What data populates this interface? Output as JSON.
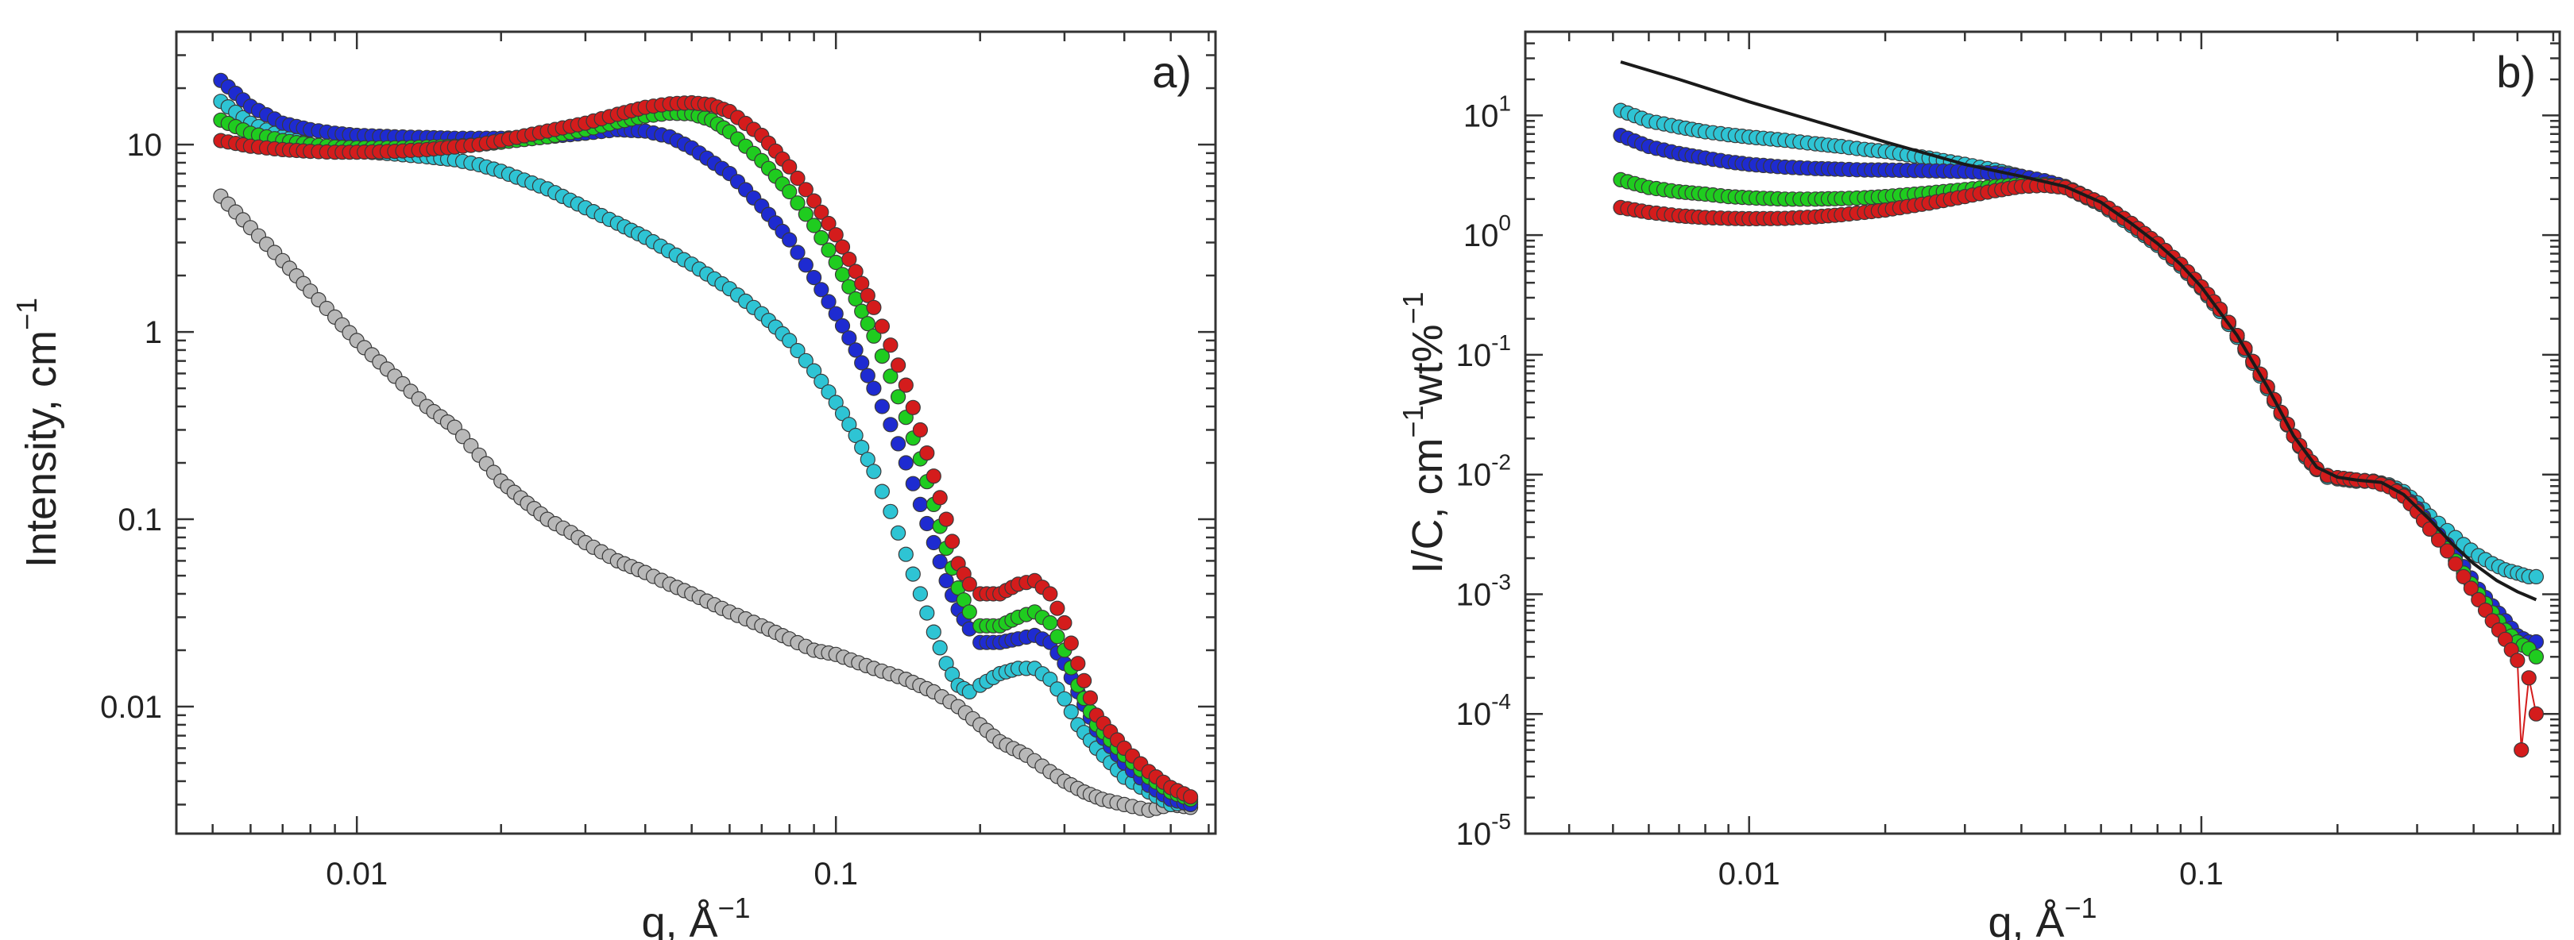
{
  "chart_data": [
    {
      "type": "scatter",
      "panel_label": "a)",
      "xscale": "log",
      "yscale": "log",
      "xlim": [
        0.0042,
        0.62
      ],
      "ylim": [
        0.0021,
        40
      ],
      "xlabel": {
        "text": "q, Å",
        "sup": "−1"
      },
      "ylabel": {
        "text": "Intensity, cm",
        "sup": "−1"
      },
      "xticks": [
        {
          "value": 0.01,
          "label": "0.01"
        },
        {
          "value": 0.1,
          "label": "0.1"
        }
      ],
      "yticks": [
        {
          "value": 10,
          "label": "10"
        },
        {
          "value": 1,
          "label": "1"
        },
        {
          "value": 0.1,
          "label": "0.1"
        },
        {
          "value": 0.01,
          "label": "0.01"
        }
      ],
      "series": [
        {
          "name": "grey",
          "color": "#b8b8b8",
          "line": true,
          "x": [
            0.0052,
            0.006,
            0.007,
            0.008,
            0.009,
            0.01,
            0.012,
            0.014,
            0.016,
            0.018,
            0.02,
            0.022,
            0.025,
            0.028,
            0.03,
            0.035,
            0.04,
            0.045,
            0.05,
            0.06,
            0.07,
            0.08,
            0.09,
            0.1,
            0.12,
            0.14,
            0.16,
            0.18,
            0.2,
            0.22,
            0.25,
            0.28,
            0.3,
            0.33,
            0.36,
            0.4,
            0.45,
            0.5,
            0.55
          ],
          "y": [
            5.3,
            3.6,
            2.4,
            1.65,
            1.2,
            0.9,
            0.58,
            0.4,
            0.31,
            0.22,
            0.16,
            0.13,
            0.1,
            0.085,
            0.075,
            0.06,
            0.052,
            0.045,
            0.04,
            0.032,
            0.027,
            0.023,
            0.02,
            0.019,
            0.016,
            0.014,
            0.012,
            0.01,
            0.008,
            0.0065,
            0.0055,
            0.0045,
            0.004,
            0.0035,
            0.0032,
            0.003,
            0.0028,
            0.003,
            0.0029
          ]
        },
        {
          "name": "cyan",
          "color": "#2ec4d4",
          "line": false,
          "x": [
            0.0052,
            0.006,
            0.007,
            0.008,
            0.009,
            0.01,
            0.012,
            0.014,
            0.016,
            0.018,
            0.02,
            0.025,
            0.03,
            0.035,
            0.04,
            0.05,
            0.06,
            0.07,
            0.08,
            0.09,
            0.1,
            0.11,
            0.12,
            0.13,
            0.14,
            0.15,
            0.16,
            0.17,
            0.18,
            0.19,
            0.2,
            0.22,
            0.24,
            0.26,
            0.28,
            0.3,
            0.32,
            0.35,
            0.4,
            0.45,
            0.5,
            0.55
          ],
          "y": [
            17,
            13,
            11,
            10,
            9.5,
            9.2,
            8.9,
            8.6,
            8.3,
            7.8,
            7.2,
            5.8,
            4.6,
            3.8,
            3.2,
            2.3,
            1.7,
            1.25,
            0.9,
            0.62,
            0.42,
            0.28,
            0.18,
            0.11,
            0.065,
            0.04,
            0.025,
            0.017,
            0.013,
            0.012,
            0.013,
            0.015,
            0.016,
            0.016,
            0.014,
            0.011,
            0.008,
            0.006,
            0.0042,
            0.0035,
            0.003,
            0.0031
          ]
        },
        {
          "name": "blue",
          "color": "#1e2bd1",
          "line": false,
          "x": [
            0.0052,
            0.006,
            0.007,
            0.008,
            0.009,
            0.01,
            0.012,
            0.014,
            0.016,
            0.018,
            0.02,
            0.025,
            0.03,
            0.035,
            0.04,
            0.045,
            0.05,
            0.06,
            0.07,
            0.08,
            0.09,
            0.1,
            0.11,
            0.12,
            0.13,
            0.14,
            0.15,
            0.16,
            0.17,
            0.18,
            0.19,
            0.2,
            0.22,
            0.24,
            0.26,
            0.28,
            0.3,
            0.32,
            0.35,
            0.4,
            0.45,
            0.5,
            0.55
          ],
          "y": [
            22,
            16,
            13,
            12,
            11.5,
            11.2,
            11,
            10.9,
            10.8,
            10.8,
            10.8,
            11,
            11.5,
            12,
            11.8,
            11,
            9.6,
            7,
            4.7,
            3.1,
            1.95,
            1.25,
            0.8,
            0.5,
            0.32,
            0.2,
            0.12,
            0.075,
            0.047,
            0.033,
            0.026,
            0.022,
            0.022,
            0.023,
            0.024,
            0.022,
            0.017,
            0.012,
            0.0075,
            0.005,
            0.0038,
            0.0032,
            0.003
          ]
        },
        {
          "name": "green",
          "color": "#1fcc1f",
          "line": false,
          "x": [
            0.0052,
            0.006,
            0.007,
            0.008,
            0.009,
            0.01,
            0.012,
            0.014,
            0.016,
            0.018,
            0.02,
            0.025,
            0.03,
            0.035,
            0.04,
            0.045,
            0.05,
            0.055,
            0.06,
            0.07,
            0.08,
            0.09,
            0.1,
            0.11,
            0.12,
            0.13,
            0.14,
            0.15,
            0.16,
            0.17,
            0.18,
            0.19,
            0.2,
            0.22,
            0.24,
            0.26,
            0.28,
            0.3,
            0.32,
            0.35,
            0.4,
            0.45,
            0.5,
            0.55
          ],
          "y": [
            13.5,
            11.5,
            10.5,
            10,
            9.7,
            9.6,
            9.6,
            9.7,
            9.8,
            10,
            10.3,
            11,
            12,
            13.2,
            14.2,
            14.7,
            14.6,
            13.5,
            11.7,
            8.2,
            5.6,
            3.7,
            2.35,
            1.5,
            0.95,
            0.58,
            0.35,
            0.21,
            0.12,
            0.07,
            0.043,
            0.032,
            0.027,
            0.027,
            0.03,
            0.032,
            0.028,
            0.02,
            0.013,
            0.008,
            0.0055,
            0.0042,
            0.0035,
            0.0032
          ]
        },
        {
          "name": "red",
          "color": "#d41c1c",
          "line": false,
          "x": [
            0.0052,
            0.006,
            0.007,
            0.008,
            0.009,
            0.01,
            0.012,
            0.014,
            0.016,
            0.018,
            0.02,
            0.025,
            0.03,
            0.035,
            0.04,
            0.045,
            0.05,
            0.055,
            0.06,
            0.07,
            0.08,
            0.09,
            0.1,
            0.11,
            0.12,
            0.13,
            0.14,
            0.15,
            0.16,
            0.17,
            0.18,
            0.19,
            0.2,
            0.22,
            0.24,
            0.26,
            0.28,
            0.3,
            0.32,
            0.35,
            0.4,
            0.45,
            0.5,
            0.55
          ],
          "y": [
            10.5,
            9.8,
            9.4,
            9.2,
            9.1,
            9.1,
            9.2,
            9.4,
            9.7,
            10,
            10.5,
            11.8,
            13,
            14.5,
            15.8,
            16.5,
            16.7,
            16.3,
            15,
            11.2,
            7.6,
            5,
            3.3,
            2.1,
            1.35,
            0.85,
            0.52,
            0.3,
            0.17,
            0.1,
            0.058,
            0.045,
            0.04,
            0.04,
            0.045,
            0.047,
            0.04,
            0.028,
            0.017,
            0.009,
            0.006,
            0.0045,
            0.0037,
            0.0033
          ]
        }
      ]
    },
    {
      "type": "scatter",
      "panel_label": "b)",
      "xscale": "log",
      "yscale": "log",
      "xlim": [
        0.0032,
        0.62
      ],
      "ylim": [
        1e-05,
        50
      ],
      "xlabel": {
        "text": "q, Å",
        "sup": "−1"
      },
      "ylabel": {
        "parts": [
          "I/C, cm",
          "−1",
          "wt%",
          "−1"
        ]
      },
      "xticks": [
        {
          "value": 0.01,
          "label": "0.01"
        },
        {
          "value": 0.1,
          "label": "0.1"
        }
      ],
      "yticks": [
        {
          "value": 10,
          "base": "10",
          "exp": "1"
        },
        {
          "value": 1,
          "base": "10",
          "exp": "0"
        },
        {
          "value": 0.1,
          "base": "10",
          "exp": "-1"
        },
        {
          "value": 0.01,
          "base": "10",
          "exp": "-2"
        },
        {
          "value": 0.001,
          "base": "10",
          "exp": "-3"
        },
        {
          "value": 0.0001,
          "base": "10",
          "exp": "-4"
        },
        {
          "value": 1e-05,
          "base": "10",
          "exp": "-5"
        }
      ],
      "series": [
        {
          "name": "cyan",
          "color": "#2ec4d4",
          "line": false,
          "x": [
            0.0052,
            0.006,
            0.007,
            0.008,
            0.009,
            0.01,
            0.012,
            0.014,
            0.016,
            0.018,
            0.02,
            0.025,
            0.03,
            0.035,
            0.04,
            0.045,
            0.05,
            0.06,
            0.07,
            0.08,
            0.09,
            0.1,
            0.11,
            0.12,
            0.13,
            0.14,
            0.15,
            0.16,
            0.17,
            0.18,
            0.19,
            0.2,
            0.22,
            0.24,
            0.26,
            0.28,
            0.3,
            0.32,
            0.35,
            0.38,
            0.41,
            0.44,
            0.47,
            0.5,
            0.53,
            0.55
          ],
          "y": [
            11,
            9,
            8,
            7.3,
            6.9,
            6.6,
            6.2,
            5.8,
            5.5,
            5.2,
            5,
            4.4,
            3.9,
            3.5,
            3.1,
            2.8,
            2.5,
            1.8,
            1.2,
            0.82,
            0.55,
            0.36,
            0.23,
            0.14,
            0.085,
            0.052,
            0.032,
            0.021,
            0.014,
            0.011,
            0.0095,
            0.0092,
            0.0088,
            0.0088,
            0.0082,
            0.0072,
            0.0058,
            0.0045,
            0.0034,
            0.0026,
            0.0021,
            0.0018,
            0.0016,
            0.0015,
            0.0014,
            0.0014
          ]
        },
        {
          "name": "blue",
          "color": "#1e2bd1",
          "line": false,
          "x": [
            0.0052,
            0.006,
            0.007,
            0.008,
            0.009,
            0.01,
            0.012,
            0.014,
            0.016,
            0.018,
            0.02,
            0.025,
            0.03,
            0.035,
            0.04,
            0.045,
            0.05,
            0.06,
            0.07,
            0.08,
            0.09,
            0.1,
            0.11,
            0.12,
            0.13,
            0.14,
            0.15,
            0.16,
            0.17,
            0.18,
            0.19,
            0.2,
            0.22,
            0.24,
            0.26,
            0.28,
            0.3,
            0.32,
            0.35,
            0.38,
            0.41,
            0.44,
            0.47,
            0.5,
            0.53,
            0.55
          ],
          "y": [
            6.8,
            5.5,
            4.8,
            4.4,
            4.1,
            3.9,
            3.7,
            3.6,
            3.55,
            3.5,
            3.5,
            3.45,
            3.4,
            3.3,
            3.1,
            2.85,
            2.55,
            1.85,
            1.25,
            0.85,
            0.57,
            0.37,
            0.24,
            0.145,
            0.088,
            0.054,
            0.033,
            0.021,
            0.0145,
            0.0112,
            0.0098,
            0.0094,
            0.009,
            0.0088,
            0.008,
            0.0068,
            0.0052,
            0.0038,
            0.0026,
            0.0017,
            0.0011,
            0.0008,
            0.0006,
            0.00045,
            0.0004,
            0.0004
          ]
        },
        {
          "name": "green",
          "color": "#1fcc1f",
          "line": false,
          "x": [
            0.0052,
            0.006,
            0.007,
            0.008,
            0.009,
            0.01,
            0.012,
            0.014,
            0.016,
            0.018,
            0.02,
            0.025,
            0.03,
            0.035,
            0.04,
            0.045,
            0.05,
            0.06,
            0.07,
            0.08,
            0.09,
            0.1,
            0.11,
            0.12,
            0.13,
            0.14,
            0.15,
            0.16,
            0.17,
            0.18,
            0.19,
            0.2,
            0.22,
            0.24,
            0.26,
            0.28,
            0.3,
            0.32,
            0.35,
            0.38,
            0.41,
            0.44,
            0.47,
            0.5,
            0.53,
            0.55
          ],
          "y": [
            2.9,
            2.5,
            2.3,
            2.2,
            2.1,
            2.05,
            2,
            2,
            2.02,
            2.05,
            2.1,
            2.25,
            2.4,
            2.55,
            2.65,
            2.65,
            2.5,
            1.85,
            1.25,
            0.85,
            0.57,
            0.37,
            0.24,
            0.145,
            0.088,
            0.054,
            0.033,
            0.021,
            0.0145,
            0.0112,
            0.0098,
            0.0094,
            0.009,
            0.0088,
            0.008,
            0.0067,
            0.005,
            0.0036,
            0.0024,
            0.0015,
            0.001,
            0.0007,
            0.0005,
            0.0004,
            0.00035,
            0.0003
          ]
        },
        {
          "name": "red",
          "color": "#d41c1c",
          "line": true,
          "x": [
            0.0052,
            0.006,
            0.007,
            0.008,
            0.009,
            0.01,
            0.012,
            0.014,
            0.016,
            0.018,
            0.02,
            0.025,
            0.03,
            0.035,
            0.04,
            0.045,
            0.05,
            0.06,
            0.07,
            0.08,
            0.09,
            0.1,
            0.11,
            0.12,
            0.13,
            0.14,
            0.15,
            0.16,
            0.17,
            0.18,
            0.19,
            0.2,
            0.22,
            0.24,
            0.26,
            0.28,
            0.3,
            0.32,
            0.35,
            0.38,
            0.41,
            0.44,
            0.47,
            0.5,
            0.51,
            0.53,
            0.55
          ],
          "y": [
            1.7,
            1.55,
            1.45,
            1.4,
            1.38,
            1.37,
            1.38,
            1.42,
            1.48,
            1.55,
            1.62,
            1.85,
            2.1,
            2.35,
            2.55,
            2.6,
            2.5,
            1.85,
            1.25,
            0.85,
            0.57,
            0.37,
            0.24,
            0.145,
            0.088,
            0.054,
            0.033,
            0.021,
            0.0145,
            0.0112,
            0.0098,
            0.0094,
            0.009,
            0.0087,
            0.0079,
            0.0066,
            0.0049,
            0.0035,
            0.0023,
            0.0014,
            0.0009,
            0.0006,
            0.00042,
            0.00028,
            5e-05,
            0.0002,
            0.0001
          ]
        },
        {
          "name": "fit",
          "color": "#1a1a1a",
          "line": true,
          "markers": false,
          "x": [
            0.0052,
            0.007,
            0.01,
            0.015,
            0.02,
            0.03,
            0.04,
            0.05,
            0.06,
            0.07,
            0.08,
            0.09,
            0.1,
            0.12,
            0.14,
            0.16,
            0.18,
            0.2,
            0.22,
            0.25,
            0.28,
            0.32,
            0.36,
            0.4,
            0.45,
            0.5,
            0.55
          ],
          "y": [
            28,
            20,
            13,
            8.3,
            6,
            3.9,
            3.1,
            2.55,
            1.88,
            1.25,
            0.85,
            0.57,
            0.37,
            0.145,
            0.054,
            0.021,
            0.0115,
            0.0095,
            0.009,
            0.0086,
            0.0068,
            0.0042,
            0.0026,
            0.0018,
            0.0013,
            0.00105,
            0.0009
          ]
        }
      ]
    }
  ]
}
